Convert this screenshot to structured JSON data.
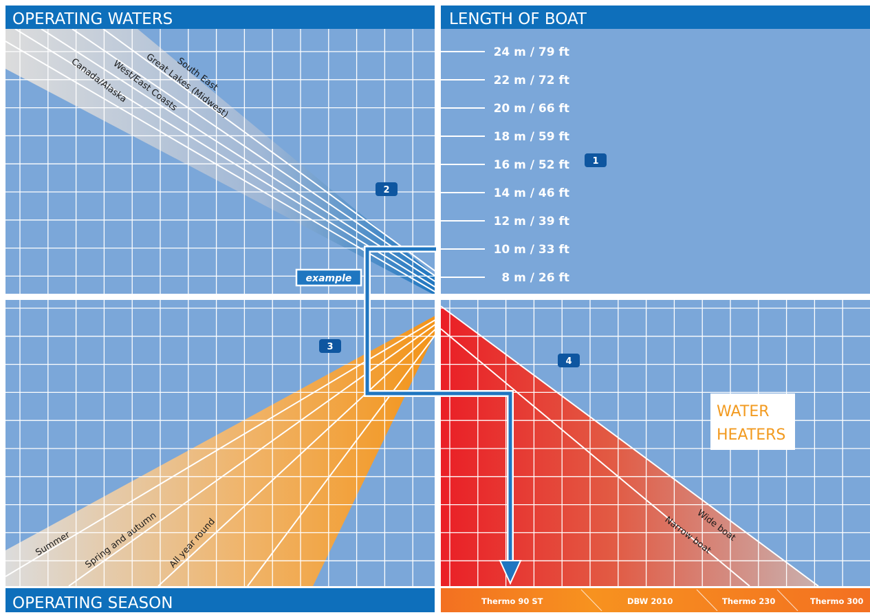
{
  "headers": {
    "operating_waters": "OPERATING WATERS",
    "length_of_boat": "LENGTH OF BOAT",
    "operating_season": "OPERATING SEASON"
  },
  "boat_lengths": [
    "24 m / 79 ft",
    "22 m / 72 ft",
    "20 m / 66 ft",
    "18 m / 59 ft",
    "16 m / 52 ft",
    "14 m / 46 ft",
    "12 m / 39 ft",
    "10 m / 33 ft",
    "8 m / 26 ft"
  ],
  "waters": [
    "South East",
    "Great Lakes (Midwest)",
    "West/East Coasts",
    "Canada/Alaska"
  ],
  "seasons": [
    "Summer",
    "Spring and autumn",
    "All year round"
  ],
  "boat_widths": [
    "Wide boat",
    "Narrow boat"
  ],
  "badges": [
    "1",
    "2",
    "3",
    "4"
  ],
  "example_label": "example",
  "water_heaters": [
    "WATER",
    "HEATERS"
  ],
  "products": [
    "Thermo 90 ST",
    "DBW 2010",
    "Thermo 230",
    "Thermo 300"
  ],
  "colors": {
    "header_blue": "#0e6fbb",
    "panel_blue": "#7ba7d9",
    "grid": "#ffffff",
    "orange": "#f29a1f",
    "red": "#e8222a"
  }
}
